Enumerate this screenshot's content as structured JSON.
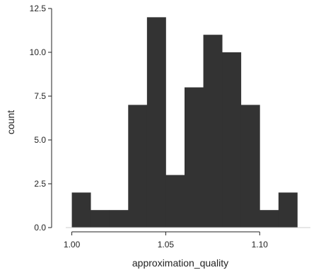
{
  "chart_data": {
    "type": "bar",
    "subtype": "histogram",
    "title": "",
    "xlabel": "approximation_quality",
    "ylabel": "count",
    "bin_width": 0.01,
    "bins": [
      {
        "start": 1.0,
        "end": 1.01,
        "count": 2
      },
      {
        "start": 1.01,
        "end": 1.02,
        "count": 1
      },
      {
        "start": 1.02,
        "end": 1.03,
        "count": 1
      },
      {
        "start": 1.03,
        "end": 1.04,
        "count": 7
      },
      {
        "start": 1.04,
        "end": 1.05,
        "count": 12
      },
      {
        "start": 1.05,
        "end": 1.06,
        "count": 3
      },
      {
        "start": 1.06,
        "end": 1.07,
        "count": 8
      },
      {
        "start": 1.07,
        "end": 1.08,
        "count": 11
      },
      {
        "start": 1.08,
        "end": 1.09,
        "count": 10
      },
      {
        "start": 1.09,
        "end": 1.1,
        "count": 7
      },
      {
        "start": 1.1,
        "end": 1.11,
        "count": 1
      },
      {
        "start": 1.11,
        "end": 1.12,
        "count": 2
      }
    ],
    "xlim": [
      0.99,
      1.13
    ],
    "ylim": [
      0,
      12.5
    ],
    "x_ticks": [
      1.0,
      1.05,
      1.1
    ],
    "x_tick_labels": [
      "1.00",
      "1.05",
      "1.10"
    ],
    "y_ticks": [
      0,
      2.5,
      5,
      7.5,
      10,
      12.5
    ],
    "y_tick_labels": [
      "0.0",
      "2.5",
      "5.0",
      "7.5",
      "10.0",
      "12.5"
    ],
    "grid": false,
    "bar_color": "#333333",
    "baseline_color": "#cccccc"
  }
}
